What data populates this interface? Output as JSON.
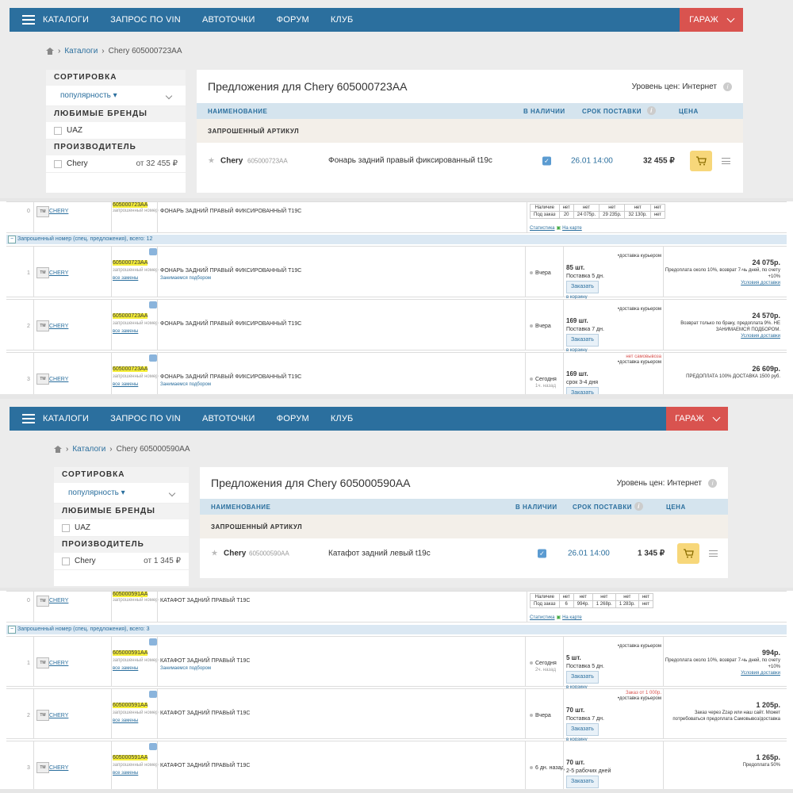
{
  "nav": {
    "items": [
      "КАТАЛОГИ",
      "ЗАПРОС ПО VIN",
      "АВТОТОЧКИ",
      "ФОРУМ",
      "КЛУБ"
    ],
    "garage": "ГАРАЖ"
  },
  "sidebar": {
    "sort_title": "СОРТИРОВКА",
    "sort_value": "популярность",
    "fav_title": "ЛЮБИМЫЕ БРЕНДЫ",
    "fav_brand": "UAZ",
    "maker_title": "ПРОИЗВОДИТЕЛЬ",
    "maker": "Chery"
  },
  "panel": {
    "level_label": "Уровень цен:",
    "level_value": "Интернет",
    "col_name": "НАИМЕНОВАНИЕ",
    "col_stock": "В НАЛИЧИИ",
    "col_delivery": "СРОК ПОСТАВКИ",
    "col_price": "ЦЕНА",
    "requested": "ЗАПРОШЕННЫЙ АРТИКУЛ"
  },
  "s1": {
    "crumb_cat": "Каталоги",
    "crumb_item": "Chery 605000723AA",
    "maker_price": "от 32 455 ₽",
    "title": "Предложения для  Chery 605000723AA",
    "brand": "Chery",
    "article": "605000723AA",
    "desc": "Фонарь задний правый фиксированный t19c",
    "date": "26.01 14:00",
    "price": "32 455 ₽"
  },
  "t1": {
    "top": {
      "num": "0",
      "brand": "CHERY",
      "article": "605000723AA",
      "sub": "запрошенный номер",
      "desc": "ФОНАРЬ ЗАДНИЙ ПРАВЫЙ ФИКСИРОВАННЫЙ T19C",
      "stat": [
        [
          "Наличие",
          "нет",
          "нет",
          "нет",
          "нет",
          "нет"
        ],
        [
          "Под заказ",
          "20",
          "24 075р.",
          "29 235р.",
          "32 130р.",
          "нет"
        ]
      ],
      "stat_link": "Статистика",
      "map_link": "На карте"
    },
    "group": "Запрошенный номер (спец. предложения), всего: 12",
    "rows": [
      {
        "num": "1",
        "brand": "CHERY",
        "article": "605000723AA",
        "sub": "запрошенный номер",
        "repl": "все замены",
        "desc": "ФОНАРЬ ЗАДНИЙ ПРАВЫЙ ФИКСИРОВАННЫЙ T19C",
        "desc2": "Занимаемся подбором",
        "when": "Вчера",
        "when2": "",
        "qty": "85 шт.",
        "deliv": "Поставка 5 дн.",
        "btn": "Заказать",
        "cart": "в корзину",
        "note_r": "•доставка курьером",
        "note_warn": "",
        "price": "24 075р.",
        "pnote": "Предоплата около 10%, возврат 7-чь дней, по счету +10%",
        "cond": "Условия доставки"
      },
      {
        "num": "2",
        "brand": "CHERY",
        "article": "605000723AA",
        "sub": "запрошенный номер",
        "repl": "все замены",
        "desc": "ФОНАРЬ ЗАДНИЙ ПРАВЫЙ ФИКСИРОВАННЫЙ T19C",
        "desc2": "",
        "when": "Вчера",
        "when2": "",
        "qty": "169 шт.",
        "deliv": "Поставка 7 дн.",
        "btn": "Заказать",
        "cart": "в корзину",
        "note_r": "•доставка курьером",
        "note_warn": "",
        "price": "24 570р.",
        "pnote": "Возврат только по браку, предоплата 9%. НЕ ЗАНИМАЕМСЯ ПОДБОРОМ.",
        "cond": "Условия доставки"
      },
      {
        "num": "3",
        "brand": "CHERY",
        "article": "605000723AA",
        "sub": "запрошенный номер",
        "repl": "все замены",
        "desc": "ФОНАРЬ ЗАДНИЙ ПРАВЫЙ ФИКСИРОВАННЫЙ T19C",
        "desc2": "Занимаемся подбором",
        "when": "Сегодня",
        "when2": "1ч. назад",
        "qty": "169 шт.",
        "deliv": "срок 3-4 дня",
        "btn": "Заказать",
        "cart": "",
        "note_r": "•доставка курьером",
        "note_warn": "нет самовывоза",
        "price": "26 609р.",
        "pnote": "ПРЕДОПЛАТА 100% ДОСТАВКА 1500 руб.",
        "cond": ""
      }
    ]
  },
  "s2": {
    "crumb_cat": "Каталоги",
    "crumb_item": "Chery 605000590AA",
    "maker_price": "от 1 345 ₽",
    "title": "Предложения для  Chery 605000590AA",
    "brand": "Chery",
    "article": "605000590AA",
    "desc": "Катафот задний левый t19c",
    "date": "26.01 14:00",
    "price": "1 345 ₽"
  },
  "t2": {
    "top": {
      "num": "0",
      "brand": "CHERY",
      "article": "605000591AA",
      "sub": "запрошенный номер",
      "desc": "КАТАФОТ ЗАДНИЙ ПРАВЫЙ T19C",
      "stat": [
        [
          "Наличие",
          "нет",
          "нет",
          "нет",
          "нет",
          "нет"
        ],
        [
          "Под заказ",
          "6",
          "994р.",
          "1 268р.",
          "1 283р.",
          "нет"
        ]
      ],
      "stat_link": "Статистика",
      "map_link": "На карте"
    },
    "group": "Запрошенный номер (спец. предложения), всего: 3",
    "rows": [
      {
        "num": "1",
        "brand": "CHERY",
        "article": "605000591AA",
        "sub": "запрошенный номер",
        "repl": "все замены",
        "desc": "КАТАФОТ ЗАДНИЙ ПРАВЫЙ T19C",
        "desc2": "Занимаемся подбором",
        "when": "Сегодня",
        "when2": "2ч. назад",
        "qty": "5 шт.",
        "deliv": "Поставка 5 дн.",
        "btn": "Заказать",
        "cart": "в корзину",
        "note_r": "•доставка курьером",
        "note_warn": "",
        "price": "994р.",
        "pnote": "Предоплата около 10%, возврат 7-чь дней, по счету +10%",
        "cond": "Условия доставки"
      },
      {
        "num": "2",
        "brand": "CHERY",
        "article": "605000591AA",
        "sub": "запрошенный номер",
        "repl": "все замены",
        "desc": "КАТАФОТ ЗАДНИЙ ПРАВЫЙ T19C",
        "desc2": "",
        "when": "Вчера",
        "when2": "",
        "qty": "70 шт.",
        "deliv": "Поставка 7 дн.",
        "btn": "Заказать",
        "cart": "в корзину",
        "note_r": "•доставка курьером",
        "note_warn": "Заказ от 1 000р.",
        "price": "1 205р.",
        "pnote": "Заказ через Zzap или наш сайт. Может потребоваться предоплата Самовывоз/доставка",
        "cond": ""
      },
      {
        "num": "3",
        "brand": "CHERY",
        "article": "605000591AA",
        "sub": "запрошенный номер",
        "repl": "все замены",
        "desc": "КАТАФОТ ЗАДНИЙ ПРАВЫЙ T19C",
        "desc2": "",
        "when": "6 дн. назад",
        "when2": "",
        "qty": "70 шт.",
        "deliv": "2-5 рабочих дней",
        "btn": "Заказать",
        "cart": "в корзину",
        "note_r": "",
        "note_warn": "",
        "price": "1 265р.",
        "pnote": "Предоплата 50%",
        "cond": ""
      }
    ]
  }
}
